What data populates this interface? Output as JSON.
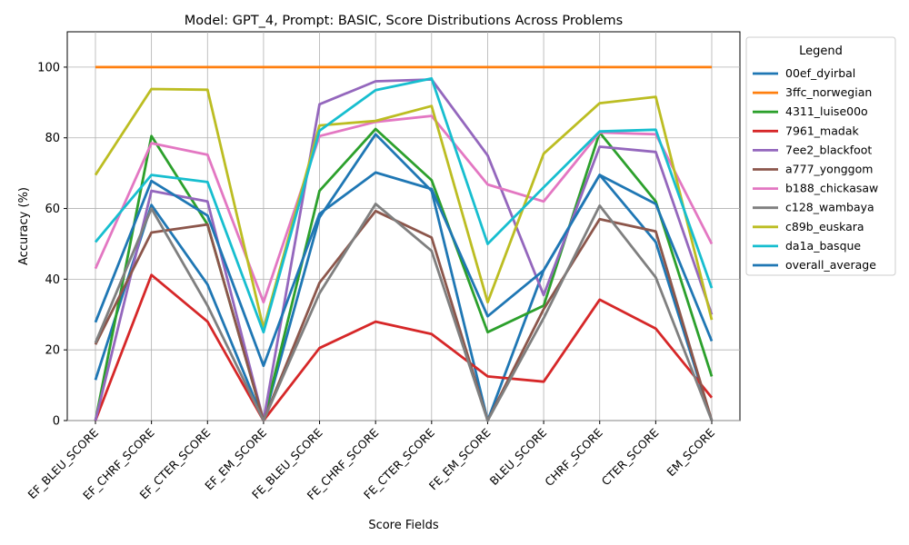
{
  "chart_data": {
    "type": "line",
    "title": "Model: GPT_4, Prompt: BASIC, Score Distributions Across Problems",
    "xlabel": "Score Fields",
    "ylabel": "Accuracy (%)",
    "ylim": [
      0,
      110
    ],
    "yticks": [
      0,
      20,
      40,
      60,
      80,
      100
    ],
    "grid": true,
    "legend_title": "Legend",
    "legend_position": "outside-right",
    "categories": [
      "EF_BLEU_SCORE",
      "EF_CHRF_SCORE",
      "EF_CTER_SCORE",
      "EF_EM_SCORE",
      "FE_BLEU_SCORE",
      "FE_CHRF_SCORE",
      "FE_CTER_SCORE",
      "FE_EM_SCORE",
      "BLEU_SCORE",
      "CHRF_SCORE",
      "CTER_SCORE",
      "EM_SCORE"
    ],
    "series": [
      {
        "name": "00ef_dyirbal",
        "color": "#1f77b4",
        "values": [
          11.5,
          61,
          38.5,
          0,
          57.5,
          81,
          65,
          0,
          42.5,
          69.5,
          50.5,
          0
        ]
      },
      {
        "name": "3ffc_norwegian",
        "color": "#ff7f0e",
        "values": [
          100,
          100,
          100,
          100,
          100,
          100,
          100,
          100,
          100,
          100,
          100,
          100
        ]
      },
      {
        "name": "4311_luise00o",
        "color": "#2ca02c",
        "values": [
          0,
          80.5,
          55.5,
          0,
          65,
          82.5,
          68,
          25,
          32.5,
          81.5,
          62,
          12.5
        ]
      },
      {
        "name": "7961_madak",
        "color": "#d62728",
        "values": [
          0,
          41.2,
          28,
          0,
          20.5,
          28,
          24.5,
          12.5,
          11,
          34.2,
          26,
          6.5
        ]
      },
      {
        "name": "7ee2_blackfoot",
        "color": "#9467bd",
        "values": [
          0,
          65,
          62,
          0,
          89.5,
          96,
          96.5,
          75,
          35.5,
          77.5,
          76,
          30
        ]
      },
      {
        "name": "a777_yonggom",
        "color": "#8c564b",
        "values": [
          21.5,
          53.2,
          55.5,
          0,
          39,
          59.3,
          51.8,
          0,
          31.5,
          57,
          53.5,
          0
        ]
      },
      {
        "name": "b188_chickasaw",
        "color": "#e377c2",
        "values": [
          43,
          78.5,
          75.2,
          33.5,
          80.5,
          84.5,
          86.2,
          66.8,
          62,
          81.5,
          81,
          50
        ]
      },
      {
        "name": "c128_wambaya",
        "color": "#7f7f7f",
        "values": [
          22,
          60,
          32.5,
          0,
          36,
          61.3,
          48,
          0,
          29,
          60.8,
          40.5,
          0
        ]
      },
      {
        "name": "c89b_euskara",
        "color": "#bcbd22",
        "values": [
          69.5,
          93.8,
          93.6,
          26,
          83.5,
          84.8,
          89,
          33.5,
          75.5,
          89.8,
          91.6,
          28.5
        ]
      },
      {
        "name": "da1a_basque",
        "color": "#17becf",
        "values": [
          50.5,
          69.5,
          67.5,
          25,
          82,
          93.5,
          96.8,
          50,
          66,
          81.8,
          82.3,
          37.5
        ]
      },
      {
        "name": "overall_average",
        "color": "#1f77b4",
        "values": [
          27.8,
          67.8,
          58,
          15.5,
          58.5,
          70.2,
          65.5,
          29.5,
          42.5,
          69.5,
          61.3,
          22.5
        ]
      }
    ]
  }
}
